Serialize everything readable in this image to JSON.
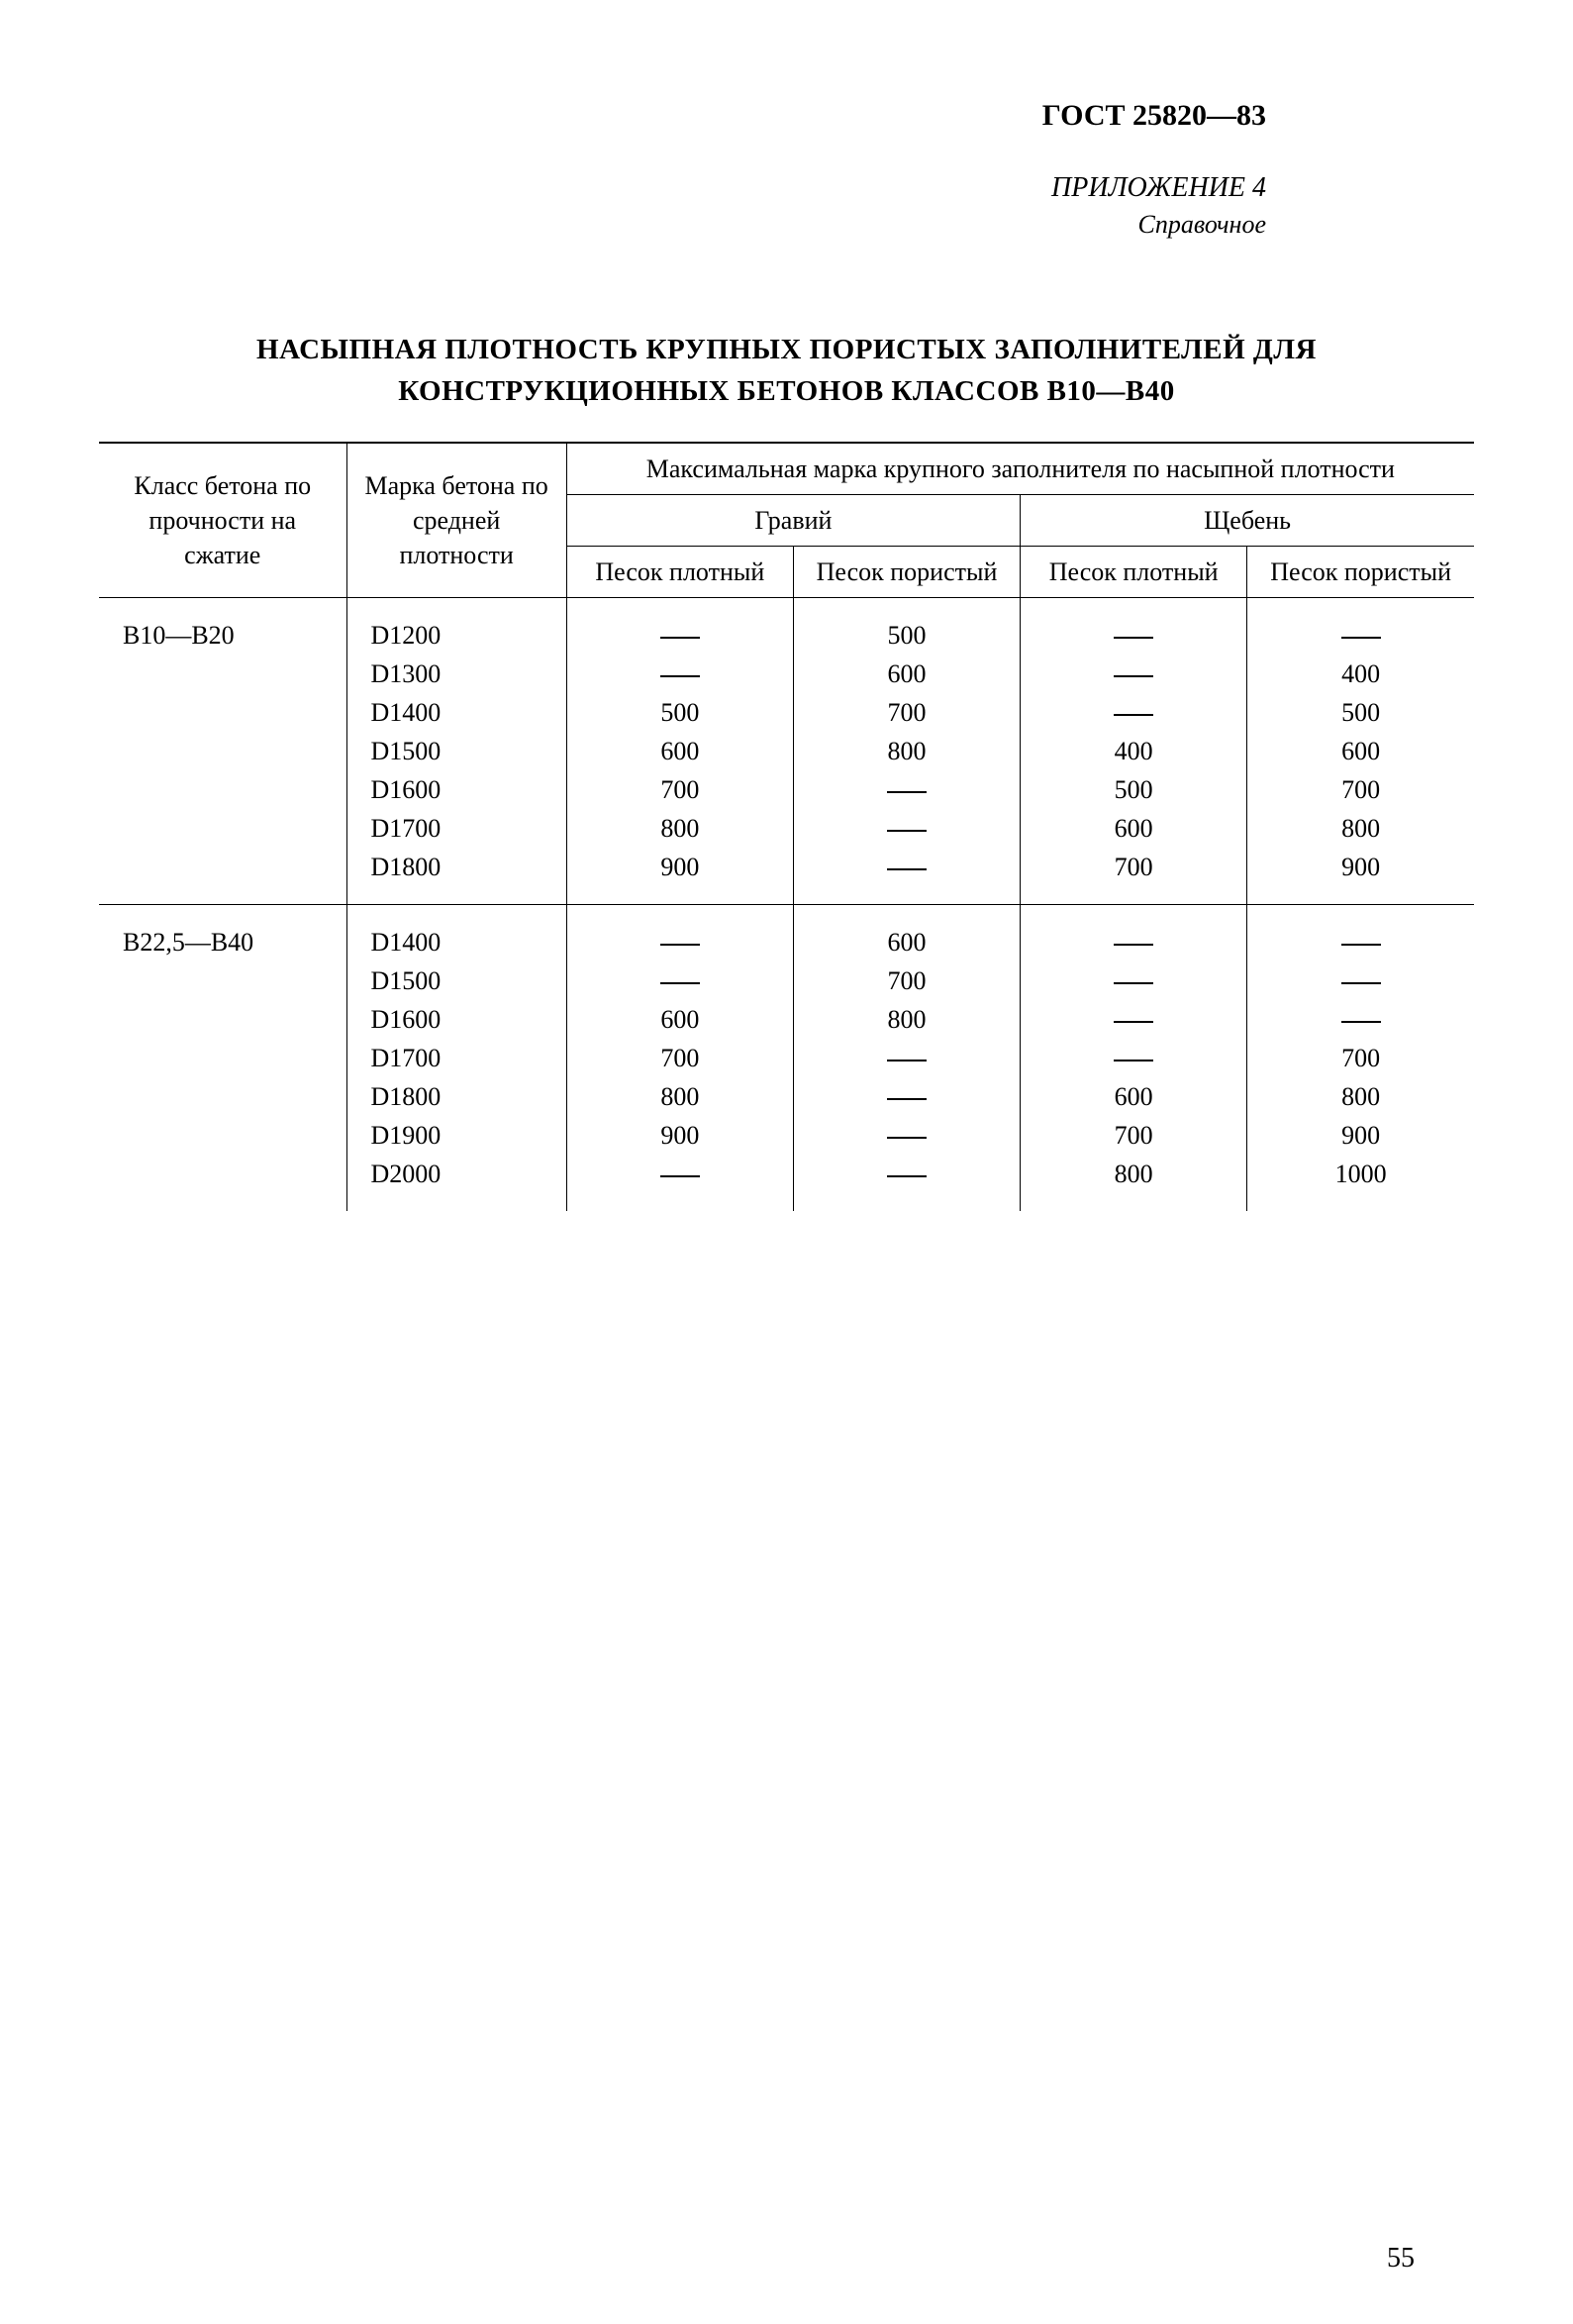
{
  "document": {
    "number": "ГОСТ 25820—83",
    "appendix_label": "ПРИЛОЖЕНИЕ 4",
    "appendix_note": "Справочное",
    "title_line1": "НАСЫПНАЯ ПЛОТНОСТЬ КРУПНЫХ ПОРИСТЫХ ЗАПОЛНИТЕЛЕЙ ДЛЯ",
    "title_line2": "КОНСТРУКЦИОННЫХ БЕТОНОВ КЛАССОВ В10—В40",
    "page_number": "55",
    "text_color": "#000000",
    "background_color": "#ffffff",
    "base_fontsize": 26,
    "title_fontsize": 29,
    "header_fontsize": 30
  },
  "table": {
    "type": "table",
    "border_color": "#000000",
    "border_width_heavy": 2,
    "border_width_light": 1,
    "header": {
      "col1": "Класс бетона по прочности на сжатие",
      "col2": "Марка бетона по средней плотности",
      "span_top": "Максимальная марка крупного заполнителя по насыпной плотности",
      "group_a": "Гравий",
      "group_b": "Щебень",
      "sub_a": "Песок плотный",
      "sub_b": "Песок пористый"
    },
    "col_widths_pct": [
      18,
      16,
      16.5,
      16.5,
      16.5,
      16.5
    ],
    "groups": [
      {
        "klass": "В10—В20",
        "marks": [
          "D1200",
          "D1300",
          "D1400",
          "D1500",
          "D1600",
          "D1700",
          "D1800"
        ],
        "gravii_plotny": [
          "—",
          "—",
          "500",
          "600",
          "700",
          "800",
          "900"
        ],
        "gravii_poristy": [
          "500",
          "600",
          "700",
          "800",
          "—",
          "—",
          "—"
        ],
        "shcheben_plotny": [
          "—",
          "—",
          "—",
          "400",
          "500",
          "600",
          "700"
        ],
        "shcheben_poristy": [
          "—",
          "400",
          "500",
          "600",
          "700",
          "800",
          "900"
        ]
      },
      {
        "klass": "В22,5—В40",
        "marks": [
          "D1400",
          "D1500",
          "D1600",
          "D1700",
          "D1800",
          "D1900",
          "D2000"
        ],
        "gravii_plotny": [
          "—",
          "—",
          "600",
          "700",
          "800",
          "900",
          "—"
        ],
        "gravii_poristy": [
          "600",
          "700",
          "800",
          "—",
          "—",
          "—",
          "—"
        ],
        "shcheben_plotny": [
          "—",
          "—",
          "—",
          "—",
          "600",
          "700",
          "800"
        ],
        "shcheben_poristy": [
          "—",
          "—",
          "—",
          "700",
          "800",
          "900",
          "1000"
        ]
      }
    ]
  }
}
